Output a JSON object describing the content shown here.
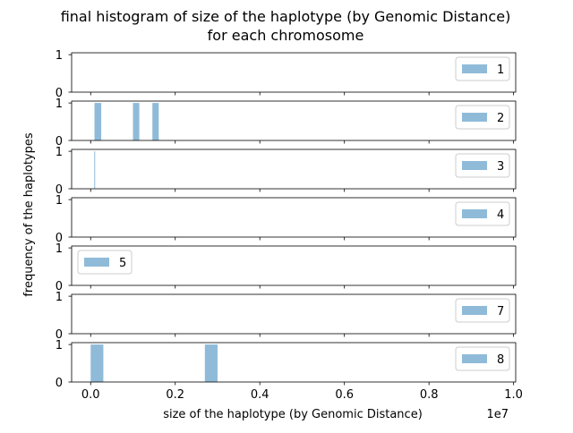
{
  "chart_data": {
    "type": "bar",
    "title_lines": [
      "final histogram of size of the haplotype (by Genomic Distance)",
      "for each chromosome"
    ],
    "xlabel": "size of the haplotype (by Genomic Distance)",
    "ylabel": "frequency of the haplotypes",
    "x_offset_label": "1e7",
    "xlim": [
      -0.045,
      1.005
    ],
    "x_ticks": [
      0.0,
      0.2,
      0.4,
      0.6,
      0.8,
      1.0
    ],
    "x_tick_labels": [
      "0.0",
      "0.2",
      "0.4",
      "0.6",
      "0.8",
      "1.0"
    ],
    "ylim": [
      0,
      1.05
    ],
    "y_ticks": [
      0,
      1
    ],
    "y_tick_labels": [
      "0",
      "1"
    ],
    "bar_color": "#1f77b4",
    "bar_opacity": 0.5,
    "panels": [
      {
        "series": "1",
        "legend_pos": "right",
        "bins": []
      },
      {
        "series": "2",
        "legend_pos": "right",
        "bins": [
          {
            "x0": 0.009,
            "x1": 0.025,
            "count": 1
          },
          {
            "x0": 0.1,
            "x1": 0.115,
            "count": 1
          },
          {
            "x0": 0.146,
            "x1": 0.161,
            "count": 1
          }
        ]
      },
      {
        "series": "3",
        "legend_pos": "right",
        "bins": [
          {
            "x0": 0.0085,
            "x1": 0.0105,
            "count": 1
          }
        ]
      },
      {
        "series": "4",
        "legend_pos": "right",
        "bins": []
      },
      {
        "series": "5",
        "legend_pos": "left",
        "bins": []
      },
      {
        "series": "7",
        "legend_pos": "right",
        "bins": []
      },
      {
        "series": "8",
        "legend_pos": "right",
        "bins": [
          {
            "x0": 0.0,
            "x1": 0.03,
            "count": 1
          },
          {
            "x0": 0.27,
            "x1": 0.3,
            "count": 1
          }
        ]
      }
    ]
  }
}
